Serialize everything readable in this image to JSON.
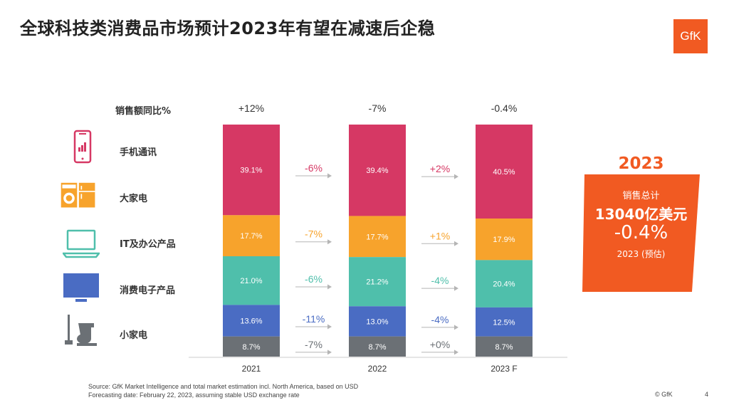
{
  "title": "全球科技类消费品市场预计2023年有望在减速后企稳",
  "logo_text": "GfK",
  "category_header": "销售额同比%",
  "categories": [
    {
      "label": "手机通讯",
      "icon": "smartphone-icon",
      "color": "#d63864"
    },
    {
      "label": "大家电",
      "icon": "washing-machine-fridge-icon",
      "color": "#f7a32c"
    },
    {
      "label": "IT及办公产品",
      "icon": "laptop-icon",
      "color": "#4fbfab"
    },
    {
      "label": "消费电子产品",
      "icon": "tv-monitor-icon",
      "color": "#4a6cc3"
    },
    {
      "label": "小家电",
      "icon": "vacuum-mixer-icon",
      "color": "#6b7075"
    }
  ],
  "chart_data": {
    "type": "bar",
    "stacked": true,
    "normalized_percent": true,
    "categories": [
      "2021",
      "2022",
      "2023 F"
    ],
    "totals_growth": [
      "+12%",
      "-7%",
      "-0.4%"
    ],
    "series": [
      {
        "name": "手机通讯",
        "values": [
          39.1,
          39.4,
          40.5
        ],
        "labels": [
          "39.1%",
          "39.4%",
          "40.5%"
        ],
        "color": "#d63864"
      },
      {
        "name": "大家电",
        "values": [
          17.7,
          17.7,
          17.9
        ],
        "labels": [
          "17.7%",
          "17.7%",
          "17.9%"
        ],
        "color": "#f7a32c"
      },
      {
        "name": "IT及办公产品",
        "values": [
          21.0,
          21.2,
          20.4
        ],
        "labels": [
          "21.0%",
          "21.2%",
          "20.4%"
        ],
        "color": "#4fbfab"
      },
      {
        "name": "消费电子产品",
        "values": [
          13.6,
          13.0,
          12.5
        ],
        "labels": [
          "13.6%",
          "13.0%",
          "12.5%"
        ],
        "color": "#4a6cc3"
      },
      {
        "name": "小家电",
        "values": [
          8.7,
          8.7,
          8.7
        ],
        "labels": [
          "8.7%",
          "8.7%",
          "8.7%"
        ],
        "color": "#6b7075"
      }
    ],
    "segment_growth": [
      {
        "from": "2021",
        "to": "2022",
        "values": [
          "-6%",
          "-7%",
          "-6%",
          "-11%",
          "-7%"
        ]
      },
      {
        "from": "2022",
        "to": "2023 F",
        "values": [
          "+2%",
          "+1%",
          "-4%",
          "-4%",
          "+0%"
        ]
      }
    ]
  },
  "summary": {
    "year": "2023",
    "label": "销售总计",
    "amount": "13040亿美元",
    "growth": "-0.4%",
    "note": "2023 (预估)"
  },
  "colors": {
    "accent": "#f15a22",
    "arrow": "#b5b5b5"
  },
  "footnote": {
    "line1": "Source: GfK Market Intelligence and total market estimation incl. North America, based on USD",
    "line2": "Forecasting date: February 22, 2023, assuming stable USD exchange rate"
  },
  "copyright": "© GfK",
  "page_number": "4"
}
